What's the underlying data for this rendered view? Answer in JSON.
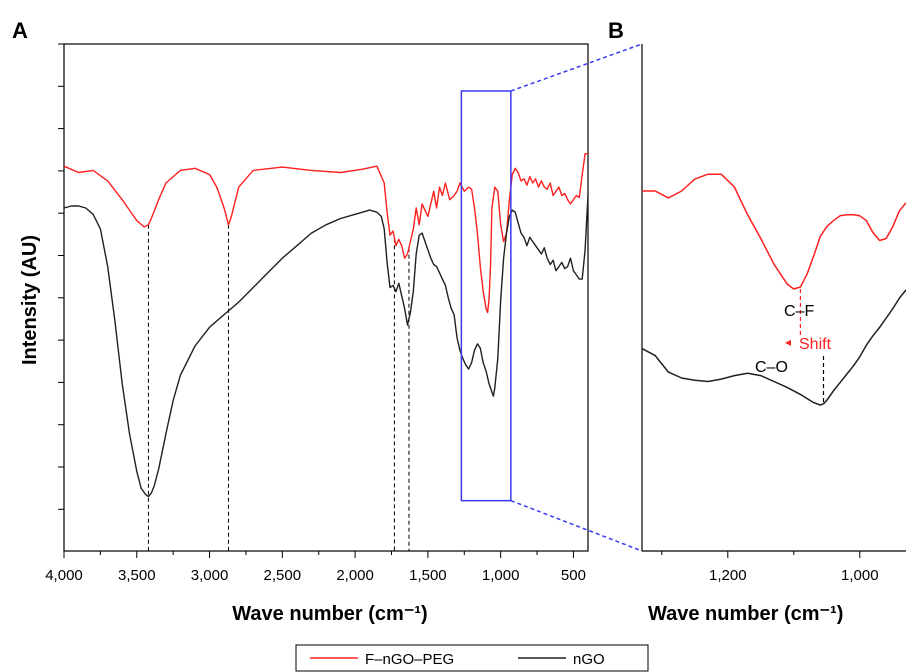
{
  "panels": {
    "a_letter": "A",
    "b_letter": "B"
  },
  "ylabel": "Intensity (AU)",
  "colors": {
    "f_ngo_peg": "#ff2020",
    "ngo": "#202020",
    "zoom_box": "#3a3af0",
    "axis": "#000000"
  },
  "chart_data": [
    {
      "panel": "A",
      "type": "line",
      "xlabel": "Wave number (cm⁻¹)",
      "ylabel": "Intensity (AU)",
      "xlim": [
        4000,
        400
      ],
      "x_reversed": true,
      "x_ticks": [
        4000,
        3500,
        3000,
        2500,
        2000,
        1500,
        1000,
        500
      ],
      "x_tick_labels": [
        "4,000",
        "3,500",
        "3,000",
        "2,500",
        "2,000",
        "1,500",
        "1,000",
        "500"
      ],
      "y_tick_labels_shown": false,
      "grid": false,
      "series": [
        {
          "name": "F–nGO–PEG",
          "x": [
            4000,
            3900,
            3800,
            3700,
            3600,
            3500,
            3450,
            3420,
            3400,
            3350,
            3300,
            3200,
            3100,
            3000,
            2950,
            2900,
            2870,
            2850,
            2800,
            2700,
            2500,
            2300,
            2100,
            1950,
            1850,
            1800,
            1780,
            1760,
            1740,
            1720,
            1700,
            1680,
            1660,
            1640,
            1620,
            1600,
            1580,
            1560,
            1540,
            1500,
            1460,
            1440,
            1420,
            1400,
            1380,
            1350,
            1320,
            1300,
            1280,
            1250,
            1220,
            1200,
            1180,
            1160,
            1140,
            1120,
            1100,
            1090,
            1080,
            1070,
            1060,
            1040,
            1020,
            1000,
            980,
            960,
            940,
            920,
            900,
            880,
            860,
            840,
            820,
            800,
            780,
            760,
            740,
            720,
            700,
            680,
            660,
            640,
            620,
            600,
            580,
            560,
            540,
            520,
            500,
            480,
            460,
            440,
            420,
            400
          ],
          "y": [
            82.0,
            80.5,
            81.0,
            78.5,
            74.0,
            69.0,
            67.5,
            68.0,
            69.5,
            74.0,
            78.0,
            81.0,
            81.5,
            80.0,
            77.0,
            72.0,
            68.0,
            70.0,
            77.0,
            81.0,
            81.8,
            81.0,
            80.5,
            81.3,
            82.0,
            78.0,
            71.0,
            65.5,
            66.5,
            63.0,
            64.5,
            63.0,
            60.0,
            61.0,
            64.0,
            67.0,
            72.0,
            68.0,
            73.0,
            70.0,
            76.0,
            72.0,
            77.0,
            75.0,
            78.0,
            74.0,
            75.0,
            76.0,
            78.0,
            76.0,
            77.0,
            76.5,
            72.0,
            66.0,
            58.0,
            52.0,
            48.0,
            47.0,
            50.0,
            58.0,
            72.0,
            77.0,
            76.0,
            68.0,
            64.0,
            66.0,
            74.0,
            80.0,
            81.5,
            80.5,
            78.5,
            79.0,
            77.5,
            79.5,
            78.0,
            79.0,
            77.0,
            78.5,
            77.0,
            76.5,
            78.0,
            75.0,
            76.0,
            77.0,
            75.0,
            75.5,
            74.0,
            73.0,
            74.0,
            75.0,
            74.5,
            80.0,
            85.0,
            85.0
          ],
          "color": "#ff2020"
        },
        {
          "name": "nGO",
          "x": [
            4000,
            3950,
            3900,
            3850,
            3800,
            3750,
            3700,
            3650,
            3600,
            3550,
            3500,
            3470,
            3440,
            3420,
            3400,
            3380,
            3350,
            3300,
            3250,
            3200,
            3100,
            3000,
            2900,
            2800,
            2700,
            2600,
            2500,
            2400,
            2300,
            2200,
            2100,
            2000,
            1950,
            1900,
            1850,
            1820,
            1800,
            1780,
            1760,
            1740,
            1720,
            1700,
            1680,
            1660,
            1640,
            1620,
            1600,
            1580,
            1560,
            1540,
            1520,
            1500,
            1480,
            1460,
            1440,
            1420,
            1400,
            1380,
            1360,
            1340,
            1320,
            1300,
            1280,
            1260,
            1240,
            1220,
            1200,
            1180,
            1160,
            1140,
            1120,
            1100,
            1080,
            1060,
            1050,
            1040,
            1020,
            1000,
            980,
            960,
            940,
            920,
            900,
            880,
            860,
            840,
            820,
            800,
            780,
            760,
            740,
            720,
            700,
            680,
            660,
            640,
            620,
            600,
            580,
            560,
            540,
            520,
            500,
            480,
            460,
            440,
            420,
            400
          ],
          "y": [
            72.0,
            72.5,
            72.5,
            72.0,
            70.5,
            67.0,
            58.0,
            45.0,
            30.0,
            18.0,
            9.0,
            5.0,
            3.5,
            3.0,
            3.8,
            5.5,
            9.5,
            18.0,
            26.0,
            32.0,
            39.0,
            43.5,
            46.5,
            49.5,
            53.0,
            56.5,
            60.0,
            63.0,
            66.0,
            68.0,
            69.5,
            70.5,
            71.0,
            71.5,
            71.0,
            70.0,
            67.0,
            59.0,
            53.0,
            53.5,
            52.0,
            54.0,
            51.0,
            48.0,
            44.0,
            47.0,
            52.0,
            61.0,
            65.5,
            66.0,
            64.0,
            62.0,
            60.0,
            58.5,
            58.0,
            56.5,
            55.0,
            53.5,
            50.5,
            48.0,
            46.5,
            41.0,
            38.0,
            36.0,
            34.5,
            33.5,
            35.0,
            38.0,
            39.5,
            38.5,
            35.0,
            33.0,
            30.0,
            28.0,
            27.0,
            29.0,
            36.0,
            50.0,
            60.0,
            66.0,
            70.0,
            71.5,
            71.0,
            68.5,
            66.0,
            65.0,
            63.0,
            65.0,
            64.0,
            63.0,
            62.0,
            61.0,
            62.5,
            60.0,
            58.5,
            59.5,
            57.0,
            58.0,
            59.0,
            57.5,
            58.0,
            60.0,
            57.0,
            56.0,
            55.0,
            55.0,
            62.0,
            75.0
          ],
          "color": "#202020"
        }
      ],
      "guides_x": [
        3420,
        2870,
        1730,
        1630
      ],
      "zoom_box": {
        "x": [
          1270,
          930
        ],
        "y": [
          2,
          100
        ]
      }
    },
    {
      "panel": "B",
      "type": "line",
      "xlabel": "Wave number (cm⁻¹)",
      "xlim": [
        1330,
        930
      ],
      "x_reversed": true,
      "x_ticks": [
        1200,
        1000
      ],
      "x_tick_labels": [
        "1,200",
        "1,000"
      ],
      "y_tick_labels_shown": false,
      "grid": false,
      "series": [
        {
          "name": "F–nGO–PEG",
          "x": [
            1330,
            1310,
            1290,
            1270,
            1250,
            1230,
            1210,
            1190,
            1170,
            1150,
            1130,
            1110,
            1100,
            1090,
            1080,
            1070,
            1060,
            1050,
            1040,
            1030,
            1020,
            1010,
            1000,
            990,
            980,
            970,
            960,
            950,
            940,
            930
          ],
          "y": [
            80,
            80,
            76.5,
            80,
            86,
            88.5,
            88.5,
            82,
            68,
            56,
            43,
            33,
            30.5,
            31.5,
            38,
            47,
            57,
            62,
            65,
            67.5,
            68,
            68,
            67.5,
            65,
            59,
            55,
            56,
            62,
            70,
            74
          ],
          "color": "#ff2020"
        },
        {
          "name": "nGO",
          "x": [
            1330,
            1310,
            1290,
            1270,
            1250,
            1230,
            1210,
            1190,
            1170,
            1150,
            1130,
            1110,
            1090,
            1070,
            1060,
            1055,
            1050,
            1040,
            1030,
            1020,
            1010,
            1000,
            990,
            980,
            970,
            960,
            950,
            940,
            930
          ],
          "y": [
            24,
            21,
            14,
            11.5,
            10.5,
            10,
            11,
            12.5,
            13.5,
            12.5,
            10,
            7.5,
            4.5,
            1,
            0,
            0.5,
            2,
            6,
            9.5,
            13,
            16.5,
            20.5,
            25.5,
            29.5,
            33,
            37,
            41,
            45.5,
            49
          ],
          "color": "#202020"
        }
      ],
      "annotations": [
        {
          "text": "C–F",
          "color": "#000000"
        },
        {
          "text": "Shift",
          "color": "#ff2020"
        },
        {
          "text": "C–O",
          "color": "#000000"
        }
      ],
      "guides_x": [
        1090,
        1055
      ]
    }
  ],
  "legend": {
    "items": [
      {
        "label": "F–nGO–PEG",
        "color": "#ff2020"
      },
      {
        "label": "nGO",
        "color": "#202020"
      }
    ]
  }
}
